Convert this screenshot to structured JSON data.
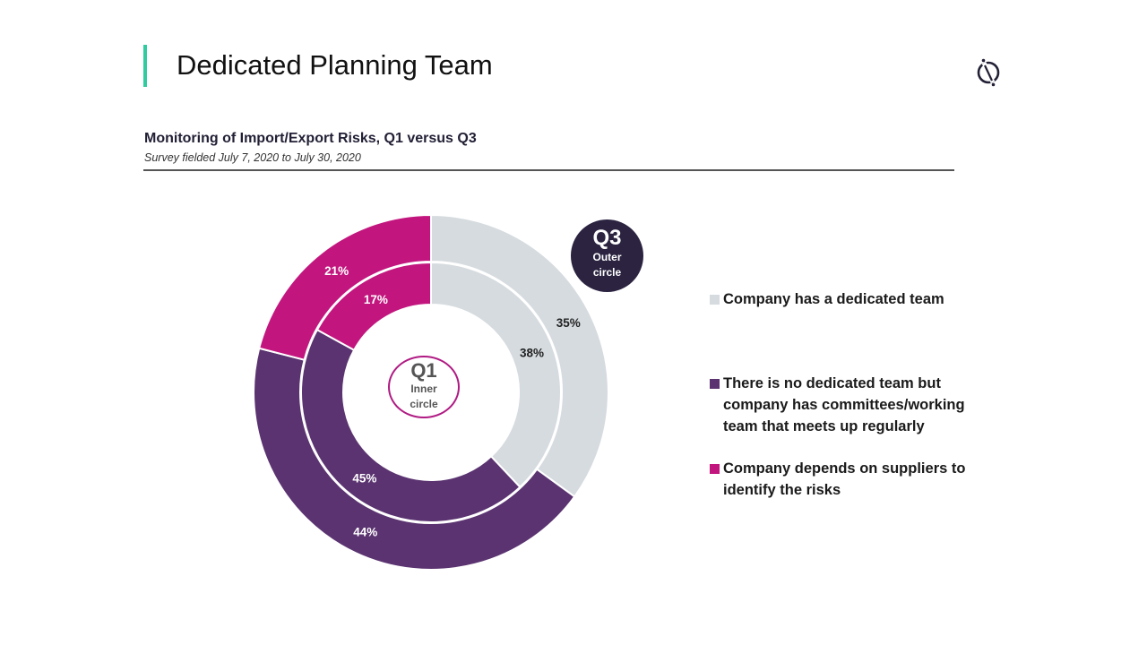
{
  "header": {
    "title": "Dedicated Planning Team",
    "accent_color": "#2ecc9e",
    "logo_icon": "slashed-circle-logo-icon"
  },
  "chart_data": {
    "type": "pie",
    "subtype": "nested-donut",
    "title": "Monitoring of Import/Export Risks, Q1 versus Q3",
    "subtitle": "Survey fielded July 7, 2020 to July 30, 2020",
    "categories": [
      "Company has a dedicated team",
      "There is no dedicated team but company has committees/working team that meets up regularly",
      "Company depends on suppliers to identify the risks"
    ],
    "colors": [
      "#d6dbdf",
      "#5a3370",
      "#c2167e"
    ],
    "series": [
      {
        "name": "Q3",
        "ring": "outer",
        "values": [
          35,
          44,
          21
        ],
        "labels": [
          "35%",
          "44%",
          "21%"
        ]
      },
      {
        "name": "Q1",
        "ring": "inner",
        "values": [
          38,
          45,
          17
        ],
        "labels": [
          "38%",
          "45%",
          "17%"
        ]
      }
    ],
    "legend_position": "right",
    "annotations": {
      "q3": {
        "big": "Q3",
        "line1": "Outer",
        "line2": "circle"
      },
      "q1": {
        "big": "Q1",
        "line1": "Inner",
        "line2": "circle"
      }
    }
  },
  "legend": [
    {
      "label": "Company has a dedicated team",
      "color": "#d6dbdf"
    },
    {
      "label": "There is no dedicated team but company has committees/working team that meets up regularly",
      "color": "#5a3370"
    },
    {
      "label": "Company depends on suppliers to identify the risks",
      "color": "#c2167e"
    }
  ]
}
